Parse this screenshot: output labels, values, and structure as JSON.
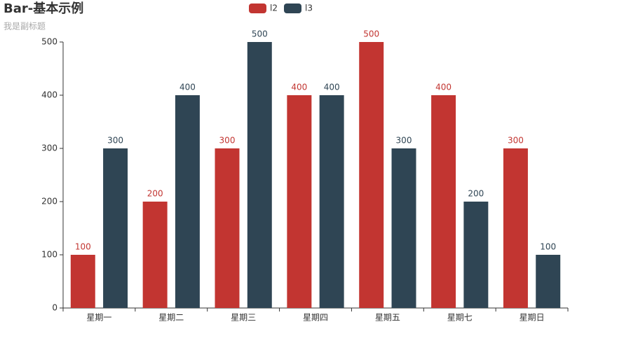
{
  "chart_data": {
    "type": "bar",
    "title": "Bar-基本示例",
    "subtitle": "我是副标题",
    "categories": [
      "星期一",
      "星期二",
      "星期三",
      "星期四",
      "星期五",
      "星期七",
      "星期日"
    ],
    "series": [
      {
        "name": "l2",
        "color": "#c23531",
        "values": [
          100,
          200,
          300,
          400,
          500,
          400,
          300
        ]
      },
      {
        "name": "l3",
        "color": "#2f4554",
        "values": [
          300,
          400,
          500,
          400,
          300,
          200,
          100
        ]
      }
    ],
    "ylim": [
      0,
      500
    ],
    "yticks": [
      0,
      100,
      200,
      300,
      400,
      500
    ],
    "grid": false,
    "legend": "top"
  }
}
